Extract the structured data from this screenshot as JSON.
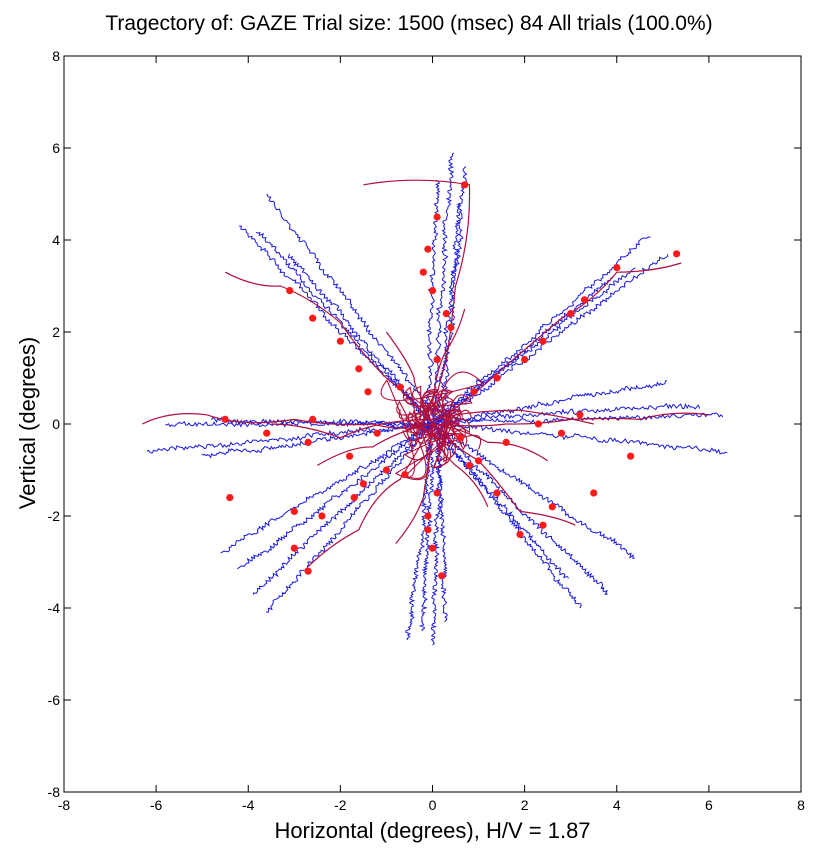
{
  "chart_data": {
    "type": "line",
    "title": "Tragectory of: GAZE  Trial size: 1500 (msec) 84 All trials (100.0%)",
    "xlabel": "Horizontal (degrees), H/V = 1.87",
    "ylabel": "Vertical (degrees)",
    "xlim": [
      -8,
      8
    ],
    "ylim": [
      -8,
      8
    ],
    "xticks": [
      "-8",
      "-6",
      "-4",
      "-2",
      "0",
      "2",
      "4",
      "6",
      "8"
    ],
    "yticks": [
      "-8",
      "-6",
      "-4",
      "-2",
      "0",
      "2",
      "4",
      "6",
      "8"
    ],
    "grid": false,
    "colors": {
      "trajectory": "#1a1ae0",
      "fixation_path": "#b0103c",
      "points": "#ff1a1a"
    },
    "trajectories": [
      [
        [
          0.0,
          0.0
        ],
        [
          0.4,
          5.9
        ]
      ],
      [
        [
          0.2,
          0.0
        ],
        [
          0.7,
          5.6
        ]
      ],
      [
        [
          -0.1,
          0.1
        ],
        [
          0.1,
          5.3
        ]
      ],
      [
        [
          0.1,
          0.0
        ],
        [
          0.6,
          4.8
        ]
      ],
      [
        [
          0.0,
          0.0
        ],
        [
          -0.2,
          -4.5
        ]
      ],
      [
        [
          0.2,
          0.0
        ],
        [
          0.0,
          -4.8
        ]
      ],
      [
        [
          0.1,
          0.0
        ],
        [
          0.3,
          -4.3
        ]
      ],
      [
        [
          0.0,
          0.0
        ],
        [
          -0.5,
          -4.7
        ]
      ],
      [
        [
          0.0,
          0.0
        ],
        [
          -3.8,
          4.2
        ]
      ],
      [
        [
          0.0,
          0.0
        ],
        [
          -4.2,
          4.3
        ]
      ],
      [
        [
          0.1,
          0.1
        ],
        [
          -3.6,
          5.0
        ]
      ],
      [
        [
          0.0,
          0.0
        ],
        [
          -3.1,
          3.7
        ]
      ],
      [
        [
          0.0,
          0.0
        ],
        [
          4.7,
          4.1
        ]
      ],
      [
        [
          0.1,
          0.0
        ],
        [
          5.1,
          3.7
        ]
      ],
      [
        [
          0.0,
          0.0
        ],
        [
          4.4,
          3.4
        ]
      ],
      [
        [
          0.0,
          0.0
        ],
        [
          3.9,
          3.2
        ]
      ],
      [
        [
          0.0,
          0.0
        ],
        [
          -6.2,
          -0.6
        ]
      ],
      [
        [
          0.0,
          0.0
        ],
        [
          -5.8,
          0.0
        ]
      ],
      [
        [
          0.0,
          0.0
        ],
        [
          -5.0,
          -0.7
        ]
      ],
      [
        [
          0.0,
          0.0
        ],
        [
          -4.8,
          0.1
        ]
      ],
      [
        [
          0.0,
          0.0
        ],
        [
          6.3,
          0.2
        ]
      ],
      [
        [
          0.0,
          0.0
        ],
        [
          6.4,
          -0.6
        ]
      ],
      [
        [
          0.0,
          0.1
        ],
        [
          5.8,
          0.4
        ]
      ],
      [
        [
          0.0,
          0.0
        ],
        [
          5.1,
          0.9
        ]
      ],
      [
        [
          0.0,
          0.0
        ],
        [
          -4.6,
          -2.8
        ]
      ],
      [
        [
          0.0,
          0.0
        ],
        [
          -4.2,
          -3.2
        ]
      ],
      [
        [
          0.0,
          0.0
        ],
        [
          -3.9,
          -3.7
        ]
      ],
      [
        [
          0.0,
          0.0
        ],
        [
          -3.6,
          -4.1
        ]
      ],
      [
        [
          0.0,
          0.0
        ],
        [
          4.4,
          -2.9
        ]
      ],
      [
        [
          0.0,
          0.0
        ],
        [
          3.8,
          -3.7
        ]
      ],
      [
        [
          0.0,
          0.0
        ],
        [
          3.2,
          -4.0
        ]
      ],
      [
        [
          0.0,
          0.0
        ],
        [
          2.9,
          -3.4
        ]
      ]
    ],
    "fixation_paths": [
      [
        [
          -6.3,
          0.0
        ],
        [
          -4.9,
          0.2
        ],
        [
          -3.0,
          0.1
        ],
        [
          -1.3,
          0.0
        ],
        [
          0.0,
          0.0
        ]
      ],
      [
        [
          6.0,
          0.2
        ],
        [
          4.5,
          0.1
        ],
        [
          3.0,
          0.1
        ],
        [
          1.6,
          0.0
        ],
        [
          0.0,
          0.0
        ]
      ],
      [
        [
          -1.5,
          5.2
        ],
        [
          0.8,
          5.2
        ],
        [
          0.5,
          3.0
        ],
        [
          0.3,
          1.4
        ],
        [
          0.0,
          0.2
        ]
      ],
      [
        [
          -4.5,
          3.3
        ],
        [
          -3.3,
          3.0
        ],
        [
          -2.0,
          2.2
        ],
        [
          -1.0,
          1.0
        ],
        [
          0.0,
          0.0
        ]
      ],
      [
        [
          5.4,
          3.5
        ],
        [
          4.0,
          3.3
        ],
        [
          2.8,
          2.3
        ],
        [
          1.4,
          1.1
        ],
        [
          0.0,
          0.0
        ]
      ],
      [
        [
          -2.7,
          -3.1
        ],
        [
          -1.6,
          -2.3
        ],
        [
          -0.7,
          -1.2
        ],
        [
          0.0,
          0.0
        ]
      ],
      [
        [
          3.1,
          -2.2
        ],
        [
          1.9,
          -1.9
        ],
        [
          1.0,
          -0.8
        ],
        [
          0.0,
          0.0
        ]
      ],
      [
        [
          -0.8,
          -2.6
        ],
        [
          -0.2,
          -1.6
        ],
        [
          0.0,
          -0.4
        ]
      ],
      [
        [
          0.7,
          2.5
        ],
        [
          0.3,
          1.6
        ],
        [
          0.0,
          0.4
        ]
      ],
      [
        [
          -2.5,
          -0.9
        ],
        [
          -1.3,
          -0.5
        ],
        [
          0.0,
          0.0
        ]
      ],
      [
        [
          2.5,
          -0.8
        ],
        [
          1.2,
          -0.4
        ],
        [
          0.0,
          0.0
        ]
      ],
      [
        [
          -3.5,
          0.0
        ],
        [
          -2.0,
          -0.3
        ],
        [
          0.0,
          0.1
        ]
      ],
      [
        [
          3.5,
          0.0
        ],
        [
          1.9,
          0.3
        ],
        [
          0.0,
          0.1
        ]
      ],
      [
        [
          -1.0,
          2.0
        ],
        [
          -0.4,
          1.0
        ],
        [
          0.0,
          0.2
        ]
      ],
      [
        [
          1.2,
          -1.8
        ],
        [
          0.5,
          -0.9
        ],
        [
          0.0,
          -0.1
        ]
      ]
    ],
    "fixation_points": [
      [
        0.7,
        5.2
      ],
      [
        0.1,
        4.5
      ],
      [
        -0.1,
        3.8
      ],
      [
        -0.2,
        3.3
      ],
      [
        0.0,
        2.9
      ],
      [
        0.3,
        2.4
      ],
      [
        0.4,
        2.1
      ],
      [
        0.1,
        1.4
      ],
      [
        0.1,
        -1.5
      ],
      [
        -0.1,
        -2.0
      ],
      [
        0.0,
        -2.7
      ],
      [
        0.2,
        -3.3
      ],
      [
        -0.1,
        -2.3
      ],
      [
        -3.1,
        2.9
      ],
      [
        -2.6,
        2.3
      ],
      [
        -2.0,
        1.8
      ],
      [
        -1.6,
        1.2
      ],
      [
        -1.4,
        0.7
      ],
      [
        5.3,
        3.7
      ],
      [
        4.0,
        3.4
      ],
      [
        3.3,
        2.7
      ],
      [
        3.0,
        2.4
      ],
      [
        2.4,
        1.8
      ],
      [
        2.0,
        1.4
      ],
      [
        1.4,
        1.0
      ],
      [
        -4.5,
        0.1
      ],
      [
        -3.6,
        -0.2
      ],
      [
        -2.7,
        -0.4
      ],
      [
        -2.6,
        0.1
      ],
      [
        -1.8,
        -0.7
      ],
      [
        -1.2,
        -0.2
      ],
      [
        4.3,
        -0.7
      ],
      [
        3.2,
        0.2
      ],
      [
        2.8,
        -0.2
      ],
      [
        2.3,
        0.0
      ],
      [
        1.6,
        -0.4
      ],
      [
        1.0,
        -0.8
      ],
      [
        -4.4,
        -1.6
      ],
      [
        -3.0,
        -1.9
      ],
      [
        -2.4,
        -2.0
      ],
      [
        -1.7,
        -1.6
      ],
      [
        -1.5,
        -1.3
      ],
      [
        -1.0,
        -1.0
      ],
      [
        3.5,
        -1.5
      ],
      [
        2.6,
        -1.8
      ],
      [
        2.4,
        -2.2
      ],
      [
        1.9,
        -2.4
      ],
      [
        1.4,
        -1.5
      ],
      [
        0.8,
        -0.9
      ],
      [
        -2.7,
        -3.2
      ],
      [
        -3.0,
        -2.7
      ],
      [
        -0.6,
        -1.1
      ],
      [
        -0.7,
        0.8
      ],
      [
        0.9,
        0.7
      ],
      [
        0.6,
        -0.3
      ]
    ]
  }
}
